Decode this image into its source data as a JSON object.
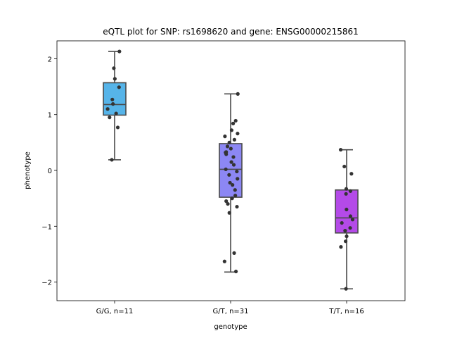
{
  "chart_data": {
    "type": "box",
    "title": "eQTL plot for SNP: rs1698620 and gene: ENSG00000215861",
    "xlabel": "genotype",
    "ylabel": "phenotype",
    "ylim": [
      -2.32,
      2.32
    ],
    "yticks": [
      {
        "value": 2,
        "label": "2"
      },
      {
        "value": 1,
        "label": "1"
      },
      {
        "value": 0,
        "label": "0"
      },
      {
        "value": -1,
        "label": "−1"
      },
      {
        "value": -2,
        "label": "−2"
      }
    ],
    "grid": false,
    "legend": "none",
    "categories": [
      "G/G, n=11",
      "G/T, n=31",
      "T/T, n=16"
    ],
    "series": [
      {
        "category": "G/G, n=11",
        "color": "#56b4e9",
        "box": {
          "whisker_low": 0.19,
          "q1": 0.99,
          "median": 1.18,
          "q3": 1.57,
          "whisker_high": 2.13
        },
        "points": [
          2.13,
          1.83,
          1.64,
          1.49,
          1.27,
          1.19,
          1.1,
          1.02,
          0.95,
          0.77,
          0.19
        ],
        "jitter": [
          0.38,
          -0.06,
          0.02,
          0.35,
          -0.18,
          -0.13,
          -0.55,
          0.12,
          -0.4,
          0.25,
          -0.22
        ]
      },
      {
        "category": "G/T, n=31",
        "color": "#8c87f4",
        "box": {
          "whisker_low": -1.82,
          "q1": -0.48,
          "median": 0.02,
          "q3": 0.48,
          "whisker_high": 1.37
        },
        "points": [
          1.37,
          0.89,
          0.84,
          0.72,
          0.66,
          0.61,
          0.55,
          0.5,
          0.43,
          0.39,
          0.32,
          0.29,
          0.24,
          0.15,
          0.1,
          0.02,
          -0.02,
          -0.08,
          -0.15,
          -0.22,
          -0.26,
          -0.35,
          -0.45,
          -0.5,
          -0.55,
          -0.6,
          -0.65,
          -0.76,
          -1.48,
          -1.63,
          -1.81
        ],
        "jitter": [
          0.57,
          0.4,
          0.2,
          0.08,
          0.55,
          -0.45,
          0.3,
          -0.1,
          -0.25,
          0.02,
          -0.4,
          -0.35,
          0.22,
          0.06,
          0.25,
          -0.38,
          0.49,
          -0.12,
          0.54,
          -0.05,
          0.15,
          0.35,
          0.37,
          0.12,
          -0.35,
          -0.22,
          0.5,
          -0.1,
          0.28,
          -0.48,
          0.42
        ],
        "extra": [
          {
            "value": 0.33,
            "jitter": -0.35
          }
        ]
      },
      {
        "category": "T/T, n=16",
        "color": "#b44ae8",
        "box": {
          "whisker_low": -2.12,
          "q1": -1.12,
          "median": -0.85,
          "q3": -0.35,
          "whisker_high": 0.37
        },
        "points": [
          0.37,
          0.07,
          -0.06,
          -0.33,
          -0.37,
          -0.42,
          -0.7,
          -0.82,
          -0.88,
          -0.94,
          -1.03,
          -1.08,
          -1.18,
          -1.27,
          -1.37,
          -2.12
        ],
        "jitter": [
          -0.47,
          -0.18,
          0.38,
          -0.03,
          0.3,
          -0.05,
          -0.01,
          0.3,
          0.47,
          -0.38,
          0.28,
          -0.12,
          0.0,
          -0.08,
          -0.45,
          -0.05
        ]
      }
    ]
  }
}
